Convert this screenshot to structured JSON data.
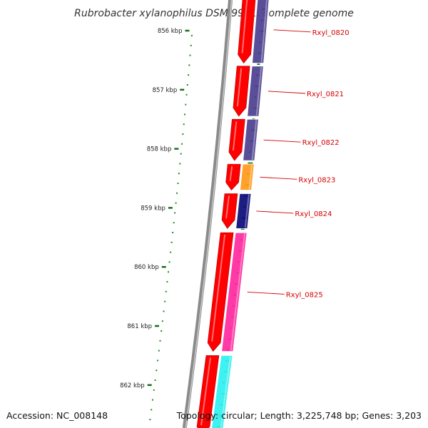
{
  "title": "Rubrobacter xylanophilus DSM 9941, complete genome",
  "accession": "Accession: NC_008148",
  "summary": "Topology: circular; Length: 3,225,748 bp; Genes: 3,203",
  "colors": {
    "backbone": "#8a8a8a",
    "tick": "#228b22",
    "label": "#d40000",
    "cds": "#ff0000",
    "cog_purple": "#4b3f8f",
    "cog_orange": "#ff9a1a",
    "cog_navy": "#0a0a78",
    "cog_pink": "#ff2aa0",
    "cog_cyan": "#2ff0f0"
  },
  "position_markers": [
    "856 kbp",
    "857 kbp",
    "858 kbp",
    "859 kbp",
    "860 kbp",
    "861 kbp",
    "862 kbp"
  ],
  "genes": [
    {
      "label": "Rxyl_0820",
      "start_kbp": 855.4,
      "end_kbp": 856.55,
      "strand": "reverse",
      "cog_color": "#4b3f8f"
    },
    {
      "label": "Rxyl_0821",
      "start_kbp": 856.6,
      "end_kbp": 857.45,
      "strand": "reverse",
      "cog_color": "#4b3f8f"
    },
    {
      "label": "Rxyl_0822",
      "start_kbp": 857.5,
      "end_kbp": 858.2,
      "strand": "reverse",
      "cog_color": "#4b3f8f"
    },
    {
      "label": "Rxyl_0823",
      "start_kbp": 858.26,
      "end_kbp": 858.7,
      "strand": "reverse",
      "cog_color": "#ff9a1a"
    },
    {
      "label": "Rxyl_0824",
      "start_kbp": 858.76,
      "end_kbp": 859.35,
      "strand": "reverse",
      "cog_color": "#0a0a78"
    },
    {
      "label": "Rxyl_0825",
      "start_kbp": 859.42,
      "end_kbp": 861.43,
      "strand": "reverse",
      "cog_color": "#ff2aa0"
    },
    {
      "label": "",
      "start_kbp": 861.5,
      "end_kbp": 863.2,
      "strand": "reverse",
      "cog_color": "#2ff0f0"
    }
  ]
}
